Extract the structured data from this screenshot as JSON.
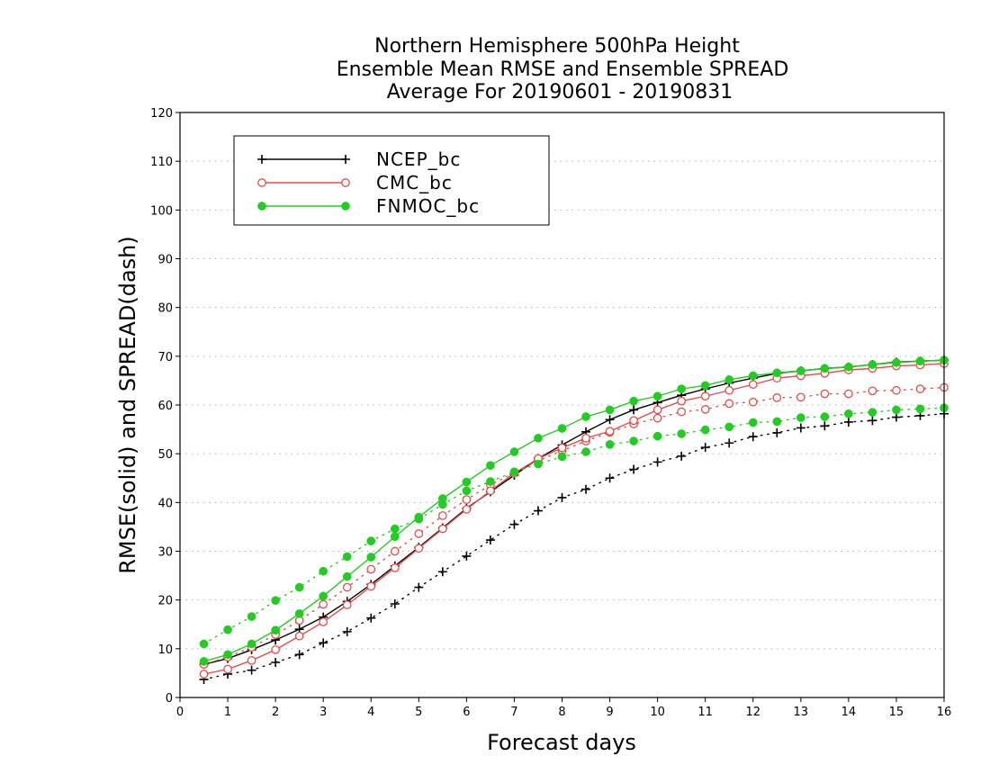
{
  "chart_data": {
    "type": "line",
    "title": [
      "Northern Hemisphere 500hPa Height",
      "Ensemble Mean RMSE and Ensemble SPREAD",
      "Average For 20190601 - 20190831"
    ],
    "xlabel": "Forecast days",
    "ylabel": "RMSE(solid) and SPREAD(dash)",
    "xlim": [
      0,
      16
    ],
    "ylim": [
      0,
      120
    ],
    "xticks": [
      0,
      1,
      2,
      3,
      4,
      5,
      6,
      7,
      8,
      9,
      10,
      11,
      12,
      13,
      14,
      15,
      16
    ],
    "yticks": [
      0,
      10,
      20,
      30,
      40,
      50,
      60,
      70,
      80,
      90,
      100,
      110,
      120
    ],
    "grid": true,
    "legend_position": "top-left",
    "x": [
      0.5,
      1,
      1.5,
      2,
      2.5,
      3,
      3.5,
      4,
      4.5,
      5,
      5.5,
      6,
      6.5,
      7,
      7.5,
      8,
      8.5,
      9,
      9.5,
      10,
      10.5,
      11,
      11.5,
      12,
      12.5,
      13,
      13.5,
      14,
      14.5,
      15,
      15.5,
      16
    ],
    "series": [
      {
        "name": "NCEP_bc",
        "color": "#000000",
        "marker": "plus",
        "rmse": [
          6.8,
          8.0,
          9.8,
          11.8,
          14.0,
          16.5,
          19.7,
          23.2,
          27.0,
          30.8,
          34.8,
          38.8,
          42.2,
          45.6,
          49.0,
          51.8,
          54.5,
          57.0,
          59.0,
          60.5,
          62.0,
          63.3,
          64.5,
          65.5,
          66.5,
          67.0,
          67.5,
          67.8,
          68.3,
          68.8,
          69.0,
          69.2
        ],
        "spread": [
          3.7,
          4.8,
          5.6,
          7.2,
          8.8,
          11.2,
          13.5,
          16.3,
          19.2,
          22.6,
          25.8,
          29.0,
          32.3,
          35.5,
          38.3,
          41.0,
          42.7,
          45.0,
          46.8,
          48.3,
          49.5,
          51.3,
          52.2,
          53.5,
          54.3,
          55.3,
          55.7,
          56.5,
          56.8,
          57.5,
          57.8,
          58.2
        ]
      },
      {
        "name": "CMC_bc",
        "color": "#e84a4a",
        "marker": "circle-open",
        "rmse": [
          4.8,
          5.8,
          7.6,
          9.8,
          12.6,
          15.5,
          19.0,
          22.8,
          26.6,
          30.6,
          34.6,
          38.6,
          42.4,
          46.0,
          49.0,
          51.2,
          53.2,
          54.6,
          56.8,
          59.0,
          60.8,
          61.8,
          63.0,
          64.2,
          65.5,
          66.0,
          66.5,
          67.2,
          67.5,
          68.0,
          68.2,
          68.5
        ],
        "spread": [
          6.8,
          8.3,
          10.3,
          12.9,
          15.8,
          19.1,
          22.6,
          26.3,
          30.0,
          33.6,
          37.3,
          40.6,
          43.6,
          46.1,
          48.6,
          50.6,
          52.6,
          54.4,
          56.1,
          57.3,
          58.6,
          59.1,
          60.3,
          60.6,
          61.5,
          61.6,
          62.3,
          62.3,
          62.9,
          63.0,
          63.3,
          63.6
        ]
      },
      {
        "name": "FNMOC_bc",
        "color": "#22cc22",
        "marker": "circle-filled",
        "rmse": [
          7.4,
          8.8,
          11.0,
          13.8,
          17.2,
          20.8,
          24.8,
          28.8,
          33.0,
          37.0,
          40.8,
          44.2,
          47.6,
          50.4,
          53.2,
          55.2,
          57.6,
          59.0,
          60.8,
          61.8,
          63.3,
          64.0,
          65.2,
          66.0,
          66.6,
          67.0,
          67.5,
          67.8,
          68.3,
          68.7,
          69.0,
          69.2
        ],
        "spread": [
          11.0,
          13.9,
          16.6,
          19.9,
          22.6,
          25.9,
          28.9,
          32.1,
          34.6,
          36.6,
          39.6,
          42.4,
          44.3,
          46.3,
          47.9,
          49.4,
          50.4,
          51.9,
          52.6,
          53.6,
          54.1,
          54.9,
          55.5,
          56.4,
          56.6,
          57.4,
          57.6,
          58.2,
          58.5,
          59.0,
          59.2,
          59.4
        ]
      }
    ]
  }
}
